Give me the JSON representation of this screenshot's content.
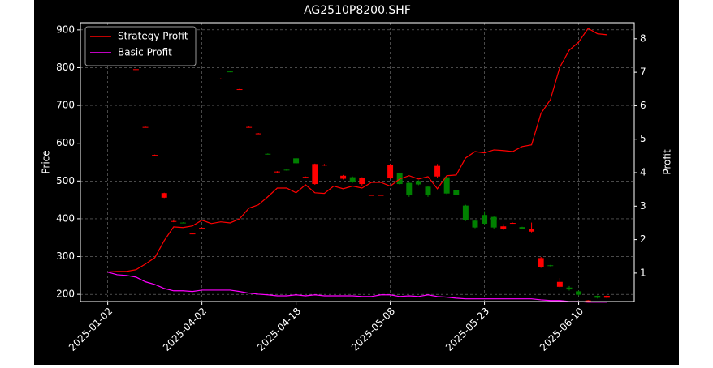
{
  "chart_data": {
    "type": "candlestick",
    "title": "AG2510P8200.SHF",
    "ylabel": "Price",
    "y2label": "Profit",
    "categories": [
      "2025-01-02",
      null,
      null,
      null,
      null,
      null,
      null,
      null,
      null,
      null,
      "2025-04-02",
      null,
      null,
      null,
      null,
      null,
      null,
      null,
      null,
      null,
      "2025-04-18",
      null,
      null,
      null,
      null,
      null,
      null,
      null,
      null,
      null,
      "2025-05-08",
      null,
      null,
      null,
      null,
      null,
      null,
      null,
      null,
      null,
      "2025-05-23",
      null,
      null,
      null,
      null,
      null,
      null,
      null,
      null,
      null,
      "2025-06-10",
      null,
      null,
      null
    ],
    "ohlc": {
      "open": [
        null,
        null,
        null,
        796,
        643,
        569,
        468,
        394,
        389,
        361,
        376,
        null,
        771,
        789,
        743,
        643,
        626,
        571,
        525,
        528,
        547,
        511,
        545,
        543,
        null,
        514,
        497,
        509,
        463,
        463,
        542,
        492,
        462,
        491,
        462,
        540,
        467,
        464,
        397,
        377,
        387,
        377,
        380,
        389,
        373,
        374,
        296,
        275,
        233,
        213,
        199,
        184,
        191,
        196
      ],
      "high": [
        null,
        null,
        null,
        797,
        644,
        570,
        469,
        396,
        391,
        362,
        377,
        null,
        772,
        791,
        744,
        644,
        627,
        573,
        526,
        531,
        561,
        512,
        546,
        545,
        null,
        516,
        512,
        510,
        464,
        464,
        545,
        522,
        497,
        502,
        487,
        545,
        512,
        477,
        437,
        396,
        420,
        406,
        386,
        390,
        379,
        390,
        299,
        278,
        243,
        222,
        210,
        185,
        197,
        199
      ],
      "low": [
        null,
        null,
        null,
        793,
        641,
        567,
        455,
        391,
        388,
        359,
        374,
        null,
        769,
        788,
        741,
        641,
        624,
        570,
        522,
        527,
        545,
        509,
        490,
        540,
        null,
        504,
        495,
        488,
        461,
        461,
        505,
        490,
        458,
        489,
        458,
        508,
        465,
        462,
        394,
        375,
        385,
        374,
        370,
        387,
        372,
        364,
        270,
        274,
        218,
        210,
        197,
        182,
        189,
        189
      ],
      "close": [
        null,
        null,
        null,
        794,
        642,
        568,
        456,
        392,
        390,
        360,
        375,
        null,
        770,
        790,
        742,
        642,
        625,
        572,
        523,
        530,
        560,
        510,
        492,
        541,
        null,
        506,
        510,
        492,
        462,
        462,
        507,
        520,
        495,
        500,
        485,
        512,
        510,
        475,
        435,
        395,
        410,
        405,
        372,
        388,
        378,
        366,
        272,
        277,
        220,
        218,
        208,
        183,
        196,
        191
      ],
      "up_color": "#008000",
      "down_color": "#ff0000"
    },
    "series": [
      {
        "name": "Strategy Profit",
        "color": "#ff0000",
        "axis": "y2",
        "values": [
          1.03,
          1.05,
          1.05,
          1.1,
          1.27,
          1.46,
          1.97,
          2.38,
          2.36,
          2.41,
          2.58,
          2.48,
          2.53,
          2.5,
          2.62,
          2.94,
          3.04,
          3.28,
          3.54,
          3.54,
          3.4,
          3.64,
          3.4,
          3.38,
          3.6,
          3.52,
          3.6,
          3.54,
          3.71,
          3.71,
          3.6,
          3.81,
          3.91,
          3.81,
          3.88,
          3.52,
          3.91,
          3.93,
          4.44,
          4.63,
          4.59,
          4.68,
          4.66,
          4.63,
          4.78,
          4.83,
          5.77,
          6.18,
          7.15,
          7.66,
          7.9,
          8.31,
          8.15,
          8.12
        ]
      },
      {
        "name": "Basic Profit",
        "color": "#ff00ff",
        "axis": "y2",
        "values": [
          1.03,
          0.95,
          0.93,
          0.88,
          0.74,
          0.66,
          0.54,
          0.47,
          0.47,
          0.45,
          0.49,
          0.49,
          0.49,
          0.49,
          0.45,
          0.4,
          0.37,
          0.35,
          0.32,
          0.32,
          0.35,
          0.32,
          0.35,
          0.32,
          0.32,
          0.32,
          0.32,
          0.3,
          0.3,
          0.35,
          0.35,
          0.3,
          0.32,
          0.3,
          0.35,
          0.3,
          0.28,
          0.25,
          0.23,
          0.23,
          0.23,
          0.23,
          0.23,
          0.23,
          0.23,
          0.23,
          0.2,
          0.18,
          0.18,
          0.15,
          0.15,
          0.13,
          0.13,
          0.13
        ]
      }
    ],
    "ylim": [
      181,
      919
    ],
    "yticks": [
      200,
      300,
      400,
      500,
      600,
      700,
      800,
      900
    ],
    "y2lim": [
      0.15,
      8.48
    ],
    "y2ticks": [
      1,
      2,
      3,
      4,
      5,
      6,
      7,
      8
    ],
    "grid": true,
    "legend": "upper left"
  }
}
